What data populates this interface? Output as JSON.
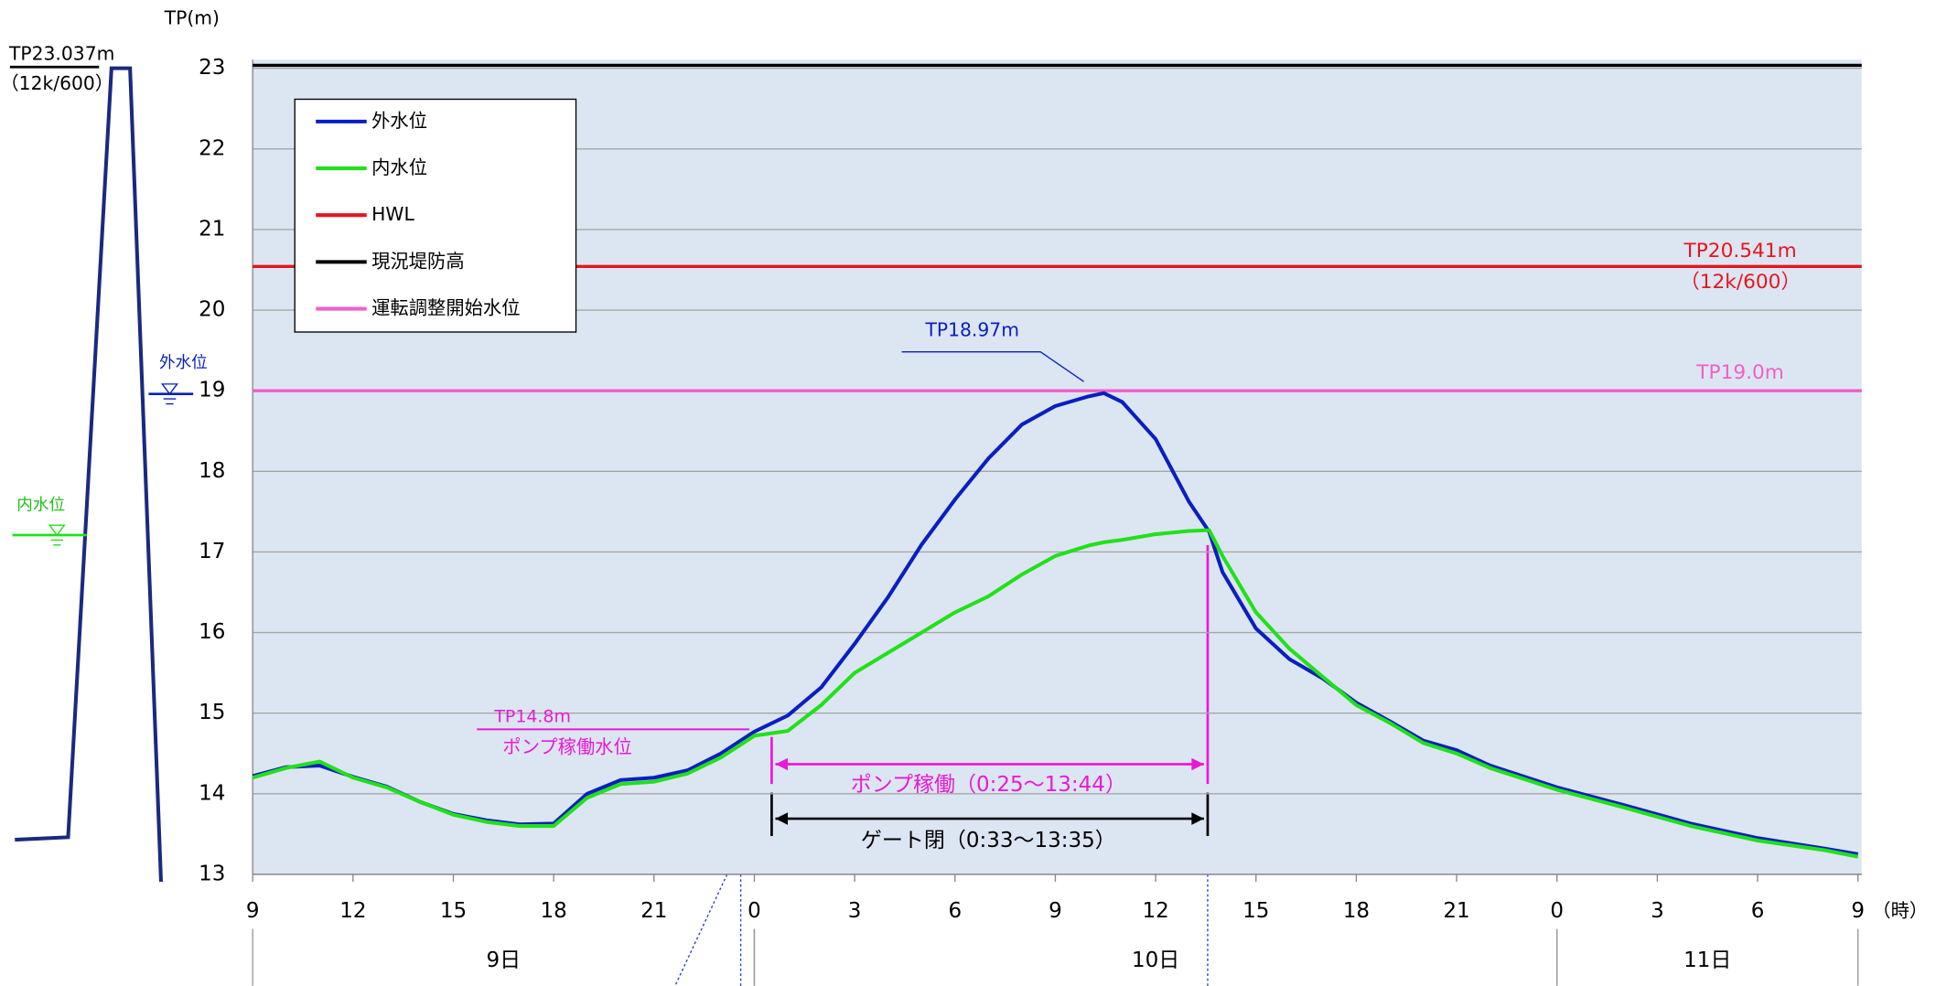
{
  "chart_data": {
    "type": "line",
    "y_title": "TP(m)",
    "x_unit": "（時）",
    "x": [
      9,
      10,
      11,
      12,
      13,
      14,
      15,
      16,
      17,
      18,
      19,
      20,
      21,
      22,
      23,
      24,
      25,
      26,
      27,
      28,
      29,
      30,
      31,
      32,
      33,
      34,
      34.45,
      35,
      36,
      37,
      37.6,
      38,
      39,
      40,
      41,
      42,
      43,
      44,
      45,
      46,
      48,
      50,
      52,
      54,
      56,
      57
    ],
    "series": [
      {
        "name": "外水位",
        "color": "#0a1fc0",
        "values": [
          14.22,
          14.33,
          14.35,
          14.21,
          14.09,
          13.9,
          13.75,
          13.67,
          13.62,
          13.63,
          14.0,
          14.17,
          14.2,
          14.29,
          14.5,
          14.77,
          14.97,
          15.32,
          15.86,
          16.44,
          17.09,
          17.65,
          18.16,
          18.58,
          18.81,
          18.93,
          18.97,
          18.86,
          18.4,
          17.62,
          17.25,
          16.75,
          16.05,
          15.67,
          15.43,
          15.13,
          14.9,
          14.66,
          14.54,
          14.35,
          14.08,
          13.86,
          13.63,
          13.45,
          13.32,
          13.25
        ]
      },
      {
        "name": "内水位",
        "color": "#22e01a",
        "values": [
          14.2,
          14.32,
          14.4,
          14.2,
          14.08,
          13.9,
          13.74,
          13.65,
          13.6,
          13.6,
          13.95,
          14.12,
          14.15,
          14.25,
          14.45,
          14.72,
          14.78,
          15.1,
          15.5,
          15.75,
          16.0,
          16.25,
          16.45,
          16.72,
          16.95,
          17.08,
          17.12,
          17.15,
          17.22,
          17.26,
          17.27,
          16.95,
          16.25,
          15.8,
          15.45,
          15.1,
          14.88,
          14.63,
          14.5,
          14.32,
          14.05,
          13.83,
          13.6,
          13.42,
          13.3,
          13.22
        ]
      }
    ],
    "reference_lines": [
      {
        "name": "HWL",
        "value": 20.541,
        "color": "#e8141e",
        "label": "TP20.541m",
        "sublabel": "（12k/600）"
      },
      {
        "name": "現況堤防高",
        "value": 23.037,
        "color": "#000000"
      },
      {
        "name": "運転調整開始水位",
        "value": 19.0,
        "color": "#f060c8",
        "label": "TP19.0m"
      }
    ],
    "pump_level": {
      "value": 14.8,
      "label": "TP14.8m",
      "sublabel": "ポンプ稼働水位",
      "color": "#e81ad8"
    },
    "peak_label": "TP18.97m",
    "pump_range": "ポンプ稼働（0:25～13:44）",
    "gate_range": "ゲート閉（0:33～13:35）",
    "xlim": [
      9,
      57
    ],
    "ylim": [
      13,
      23
    ],
    "yticks": [
      13,
      14,
      15,
      16,
      17,
      18,
      19,
      20,
      21,
      22,
      23
    ],
    "xticks": [
      {
        "value": 9,
        "label": "9"
      },
      {
        "value": 12,
        "label": "12"
      },
      {
        "value": 15,
        "label": "15"
      },
      {
        "value": 18,
        "label": "18"
      },
      {
        "value": 21,
        "label": "21"
      },
      {
        "value": 24,
        "label": "0"
      },
      {
        "value": 27,
        "label": "3"
      },
      {
        "value": 30,
        "label": "6"
      },
      {
        "value": 33,
        "label": "9"
      },
      {
        "value": 36,
        "label": "12"
      },
      {
        "value": 39,
        "label": "15"
      },
      {
        "value": 42,
        "label": "18"
      },
      {
        "value": 45,
        "label": "21"
      },
      {
        "value": 48,
        "label": "0"
      },
      {
        "value": 51,
        "label": "3"
      },
      {
        "value": 54,
        "label": "6"
      },
      {
        "value": 57,
        "label": "9"
      }
    ],
    "days": [
      {
        "label": "9日",
        "start": 9,
        "end": 24
      },
      {
        "label": "10日",
        "start": 24,
        "end": 48
      },
      {
        "label": "11日",
        "start": 48,
        "end": 57
      }
    ],
    "grid": true,
    "levee_diagram": {
      "crest_label": "TP23.037m",
      "crest_sublabel": "（12k/600）",
      "outer_label": "外水位",
      "inner_label": "内水位"
    }
  }
}
